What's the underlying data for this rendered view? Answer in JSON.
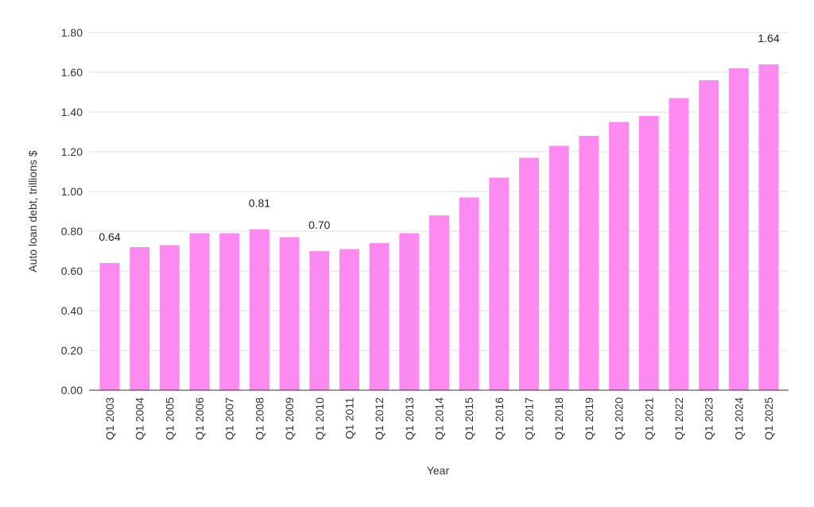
{
  "chart_data": {
    "type": "bar",
    "xlabel": "Year",
    "ylabel": "Auto loan debt, trillions $",
    "ylim": [
      0,
      1.8
    ],
    "yticks": [
      "0.00",
      "0.20",
      "0.40",
      "0.60",
      "0.80",
      "1.00",
      "1.20",
      "1.40",
      "1.60",
      "1.80"
    ],
    "grid": true,
    "bar_color": "#fd8af0",
    "categories": [
      "Q1 2003",
      "Q1 2004",
      "Q1 2005",
      "Q1 2006",
      "Q1 2007",
      "Q1 2008",
      "Q1 2009",
      "Q1 2010",
      "Q1 2011",
      "Q1 2012",
      "Q1 2013",
      "Q1 2014",
      "Q1 2015",
      "Q1 2016",
      "Q1 2017",
      "Q1 2018",
      "Q1 2019",
      "Q1 2020",
      "Q1 2021",
      "Q1 2022",
      "Q1 2023",
      "Q1 2024",
      "Q1 2025"
    ],
    "values": [
      0.64,
      0.72,
      0.73,
      0.79,
      0.79,
      0.81,
      0.77,
      0.7,
      0.71,
      0.74,
      0.79,
      0.88,
      0.97,
      1.07,
      1.17,
      1.23,
      1.28,
      1.35,
      1.38,
      1.47,
      1.56,
      1.62,
      1.64
    ],
    "data_labels": {
      "0": "0.64",
      "5": "0.81",
      "7": "0.70",
      "22": "1.64"
    }
  }
}
